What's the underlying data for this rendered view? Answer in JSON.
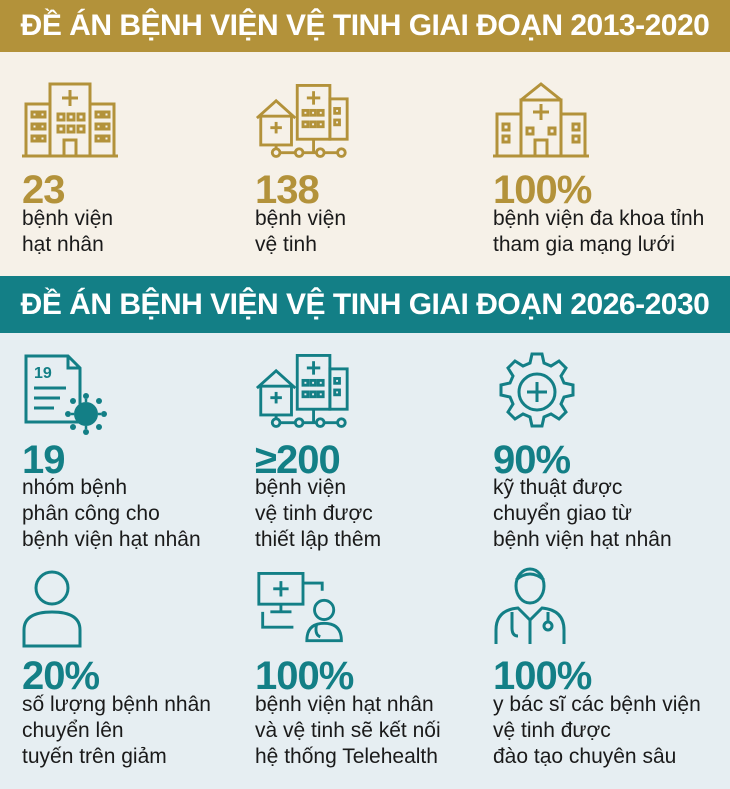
{
  "colors": {
    "gold": "#b3923a",
    "teal": "#137f86",
    "cream": "#f6f1e8",
    "lightblue": "#e6eef2"
  },
  "section1": {
    "title": "ĐỀ ÁN BỆNH VIỆN VỆ TINH GIAI ĐOẠN 2013-2020",
    "items": [
      {
        "icon": "hospital-building-icon",
        "value": "23",
        "desc": "bệnh viện\nhạt nhân"
      },
      {
        "icon": "hospital-network-icon",
        "value": "138",
        "desc": "bệnh viện\nvệ tinh"
      },
      {
        "icon": "general-hospital-icon",
        "value": "100%",
        "desc": "bệnh viện đa khoa tỉnh\ntham gia mạng lưới"
      }
    ]
  },
  "section2": {
    "title": "ĐỀ ÁN BỆNH VIỆN VỆ TINH GIAI ĐOẠN 2026-2030",
    "items": [
      {
        "icon": "document-virus-icon",
        "icon_text": "19",
        "value": "19",
        "desc": "nhóm bệnh\nphân công cho\nbệnh viện hạt nhân"
      },
      {
        "icon": "hospital-network-icon",
        "value": "≥200",
        "desc": "bệnh viện\nvệ tinh được\nthiết lập thêm"
      },
      {
        "icon": "gear-medical-icon",
        "value": "90%",
        "desc": "kỹ thuật được\nchuyển giao từ\nbệnh viện hạt nhân"
      },
      {
        "icon": "patient-icon",
        "value": "20%",
        "desc": "số lượng bệnh nhân\nchuyển lên\ntuyến trên giảm"
      },
      {
        "icon": "telehealth-icon",
        "value": "100%",
        "desc": "bệnh viện hạt nhân\nvà vệ tinh sẽ kết nối\nhệ thống Telehealth"
      },
      {
        "icon": "doctor-icon",
        "value": "100%",
        "desc": "y bác sĩ các bệnh viện\nvệ tinh được\nđào tạo chuyên sâu"
      }
    ]
  }
}
